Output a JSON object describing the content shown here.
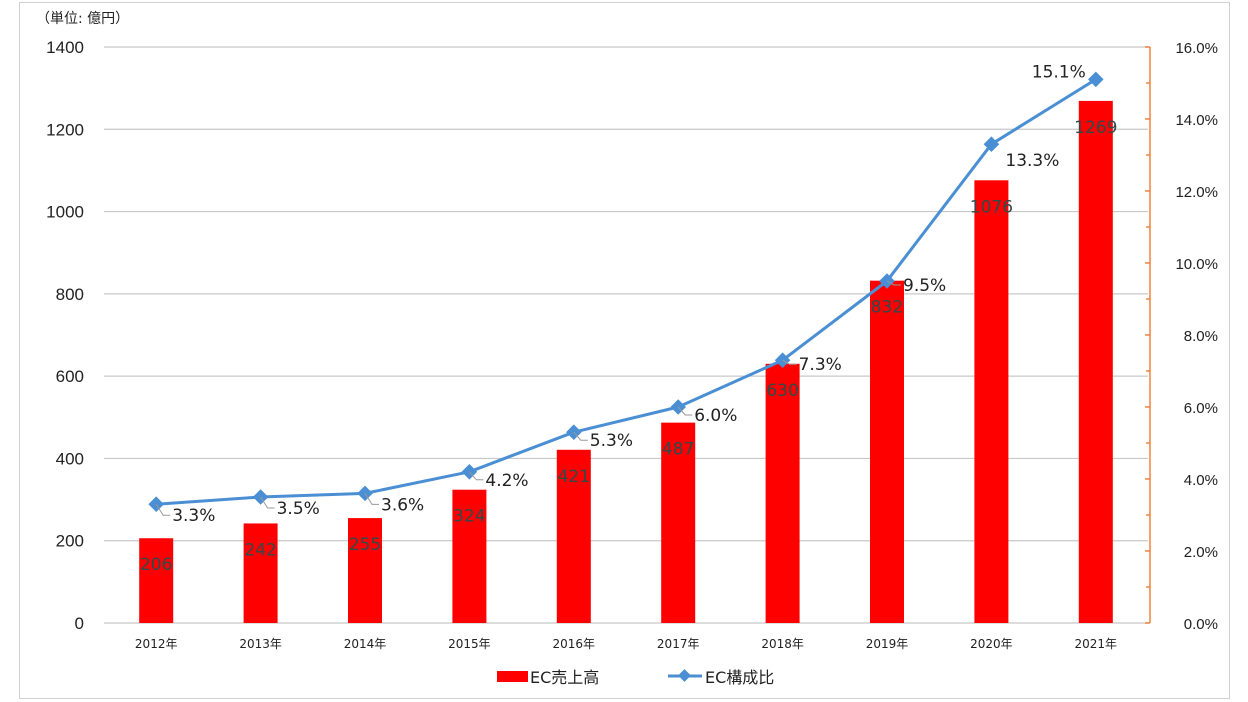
{
  "chart_data": {
    "type": "bar",
    "title": "",
    "unit_label": "（単位: 億円）",
    "categories": [
      "2012年",
      "2013年",
      "2014年",
      "2015年",
      "2016年",
      "2017年",
      "2018年",
      "2019年",
      "2020年",
      "2021年"
    ],
    "series": [
      {
        "name": "EC売上高",
        "type": "bar",
        "axis": "left",
        "color": "#ff0000",
        "values": [
          206,
          242,
          255,
          324,
          421,
          487,
          630,
          832,
          1076,
          1269
        ]
      },
      {
        "name": "EC構成比",
        "type": "line",
        "axis": "right",
        "color": "#4a8fd4",
        "marker": "diamond",
        "values": [
          3.3,
          3.5,
          3.6,
          4.2,
          5.3,
          6.0,
          7.3,
          9.5,
          13.3,
          15.1
        ],
        "labels": [
          "3.3%",
          "3.5%",
          "3.6%",
          "4.2%",
          "5.3%",
          "6.0%",
          "7.3%",
          "9.5%",
          "13.3%",
          "15.1%"
        ]
      }
    ],
    "y_left": {
      "ylim": [
        0,
        1400
      ],
      "ticks": [
        "0",
        "200",
        "400",
        "600",
        "800",
        "1000",
        "1200",
        "1400"
      ]
    },
    "y_right": {
      "ylim": [
        0,
        16
      ],
      "ticks": [
        "0.0%",
        "2.0%",
        "4.0%",
        "6.0%",
        "8.0%",
        "10.0%",
        "12.0%",
        "14.0%",
        "16.0%"
      ],
      "axis_color": "#f07020"
    },
    "grid": true,
    "legend_position": "bottom",
    "legend": [
      "EC売上高",
      "EC構成比"
    ]
  }
}
